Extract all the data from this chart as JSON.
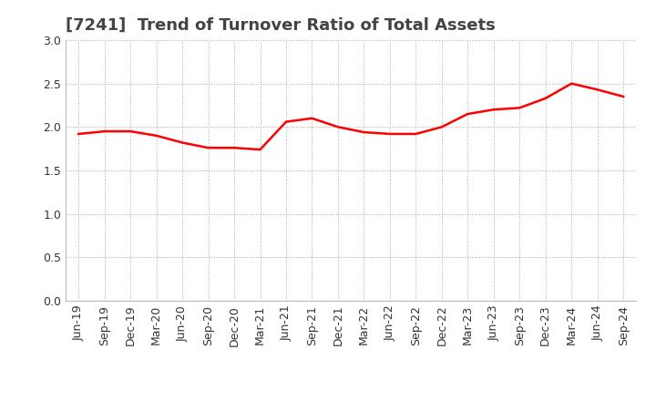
{
  "title": "[7241]  Trend of Turnover Ratio of Total Assets",
  "x_labels": [
    "Jun-19",
    "Sep-19",
    "Dec-19",
    "Mar-20",
    "Jun-20",
    "Sep-20",
    "Dec-20",
    "Mar-21",
    "Jun-21",
    "Sep-21",
    "Dec-21",
    "Mar-22",
    "Jun-22",
    "Sep-22",
    "Dec-22",
    "Mar-23",
    "Jun-23",
    "Sep-23",
    "Dec-23",
    "Mar-24",
    "Jun-24",
    "Sep-24"
  ],
  "values": [
    1.92,
    1.95,
    1.95,
    1.9,
    1.82,
    1.76,
    1.76,
    1.74,
    2.06,
    2.1,
    2.0,
    1.94,
    1.92,
    1.92,
    2.0,
    2.15,
    2.2,
    2.22,
    2.33,
    2.5,
    2.43,
    2.35
  ],
  "line_color": "#ff0000",
  "line_width": 1.8,
  "ylim": [
    0.0,
    3.0
  ],
  "yticks": [
    0.0,
    0.5,
    1.0,
    1.5,
    2.0,
    2.5,
    3.0
  ],
  "background_color": "#ffffff",
  "plot_background_color": "#ffffff",
  "grid_color": "#aaaaaa",
  "title_fontsize": 13,
  "tick_fontsize": 9,
  "title_color": "#444444"
}
